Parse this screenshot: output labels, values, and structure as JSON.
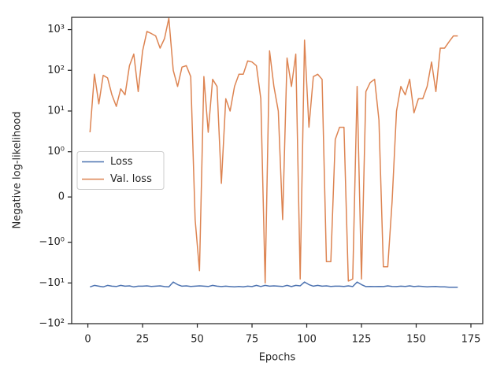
{
  "chart_data": {
    "type": "line",
    "xlabel": "Epochs",
    "ylabel": "Negative log-likelihood",
    "yscale": "symlog",
    "linthresh": 1,
    "grid": false,
    "legend": "center left",
    "xlim": [
      -7.4,
      180.4
    ],
    "xticks": [
      0,
      25,
      50,
      75,
      100,
      125,
      150,
      175
    ],
    "ylim": [
      -100,
      2000
    ],
    "yticks": [
      {
        "value": -100,
        "label": "−10²"
      },
      {
        "value": -10,
        "label": "−10¹"
      },
      {
        "value": -1,
        "label": "−10⁰"
      },
      0,
      {
        "value": 1,
        "label": "10⁰"
      },
      {
        "value": 10,
        "label": "10¹"
      },
      {
        "value": 100,
        "label": "10²"
      },
      {
        "value": 1000,
        "label": "10³"
      }
    ],
    "x": [
      1,
      3,
      5,
      7,
      9,
      11,
      13,
      15,
      17,
      19,
      21,
      23,
      25,
      27,
      29,
      31,
      33,
      35,
      37,
      39,
      41,
      43,
      45,
      47,
      49,
      51,
      53,
      55,
      57,
      59,
      61,
      63,
      65,
      67,
      69,
      71,
      73,
      75,
      77,
      79,
      81,
      83,
      85,
      87,
      89,
      91,
      93,
      95,
      97,
      99,
      101,
      103,
      105,
      107,
      109,
      111,
      113,
      115,
      117,
      119,
      121,
      123,
      125,
      127,
      129,
      131,
      133,
      135,
      137,
      139,
      141,
      143,
      145,
      147,
      149,
      151,
      153,
      155,
      157,
      159,
      161,
      163,
      165,
      167,
      169
    ],
    "series": [
      {
        "name": "Loss",
        "color": "#4c72b0",
        "values": [
          -12.5,
          -11.5,
          -12,
          -12.5,
          -11.5,
          -12,
          -12.2,
          -11.5,
          -12,
          -11.8,
          -12.5,
          -12,
          -12,
          -11.8,
          -12.2,
          -12,
          -11.8,
          -12.3,
          -12.5,
          -9.5,
          -11,
          -12,
          -11.8,
          -12.2,
          -12,
          -11.8,
          -12,
          -12.2,
          -11.5,
          -12,
          -12.3,
          -12,
          -12.3,
          -12.5,
          -12.2,
          -12.5,
          -12,
          -12.3,
          -11.5,
          -12.2,
          -11.5,
          -12,
          -11.8,
          -12,
          -12.2,
          -11.5,
          -12.3,
          -11.5,
          -11.8,
          -9.5,
          -11,
          -12,
          -11.5,
          -12,
          -11.8,
          -12.2,
          -12,
          -12,
          -12.2,
          -11.8,
          -12.3,
          -9.5,
          -11,
          -12.3,
          -12.2,
          -12.3,
          -12.2,
          -12.3,
          -11.8,
          -12.2,
          -12.3,
          -12,
          -12.2,
          -11.8,
          -12.3,
          -12,
          -12.2,
          -12.5,
          -12.3,
          -12.2,
          -12.5,
          -12.5,
          -12.8,
          -12.7,
          -12.8
        ]
      },
      {
        "name": "Val. loss",
        "color": "#dd8452",
        "values": [
          3,
          80,
          15,
          75,
          65,
          25,
          13,
          35,
          25,
          130,
          250,
          30,
          300,
          900,
          800,
          700,
          350,
          600,
          1900,
          100,
          40,
          120,
          130,
          70,
          -0.5,
          -5,
          70,
          3,
          60,
          40,
          0.3,
          20,
          10,
          40,
          80,
          80,
          170,
          160,
          130,
          20,
          -10,
          300,
          40,
          10,
          -0.5,
          200,
          40,
          250,
          -8,
          550,
          4,
          70,
          80,
          60,
          -3,
          -3,
          2,
          4,
          4,
          -9,
          -8,
          40,
          -8,
          30,
          50,
          60,
          6,
          -4,
          -4,
          -0.1,
          10,
          40,
          25,
          60,
          9,
          20,
          20,
          40,
          160,
          30,
          350,
          350,
          500,
          700,
          700
        ]
      }
    ]
  }
}
